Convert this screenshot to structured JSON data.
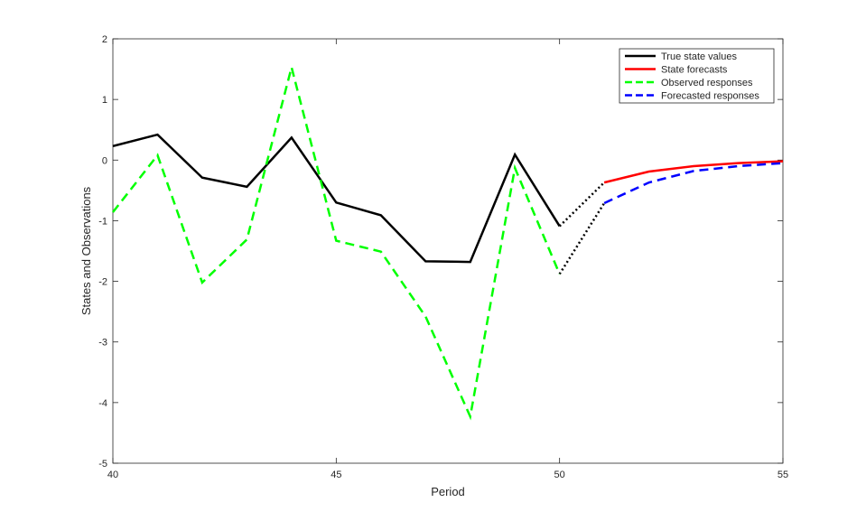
{
  "chart_data": {
    "type": "line",
    "title": "",
    "xlabel": "Period",
    "ylabel": "States and Observations",
    "xlim": [
      40,
      55
    ],
    "ylim": [
      -5,
      2
    ],
    "xticks": [
      "40",
      "45",
      "50",
      "55"
    ],
    "yticks": [
      "2",
      "1",
      "0",
      "-1",
      "-2",
      "-3",
      "-4",
      "-5"
    ],
    "grid": false,
    "legend_position": "top-right",
    "series": [
      {
        "name": "True state values",
        "color": "#000000",
        "style": "solid",
        "x": [
          40,
          41,
          42,
          43,
          44,
          45,
          46,
          47,
          48,
          49,
          50
        ],
        "y": [
          0.23,
          0.42,
          -0.29,
          -0.44,
          0.37,
          -0.7,
          -0.91,
          -1.67,
          -1.68,
          0.09,
          -1.09
        ]
      },
      {
        "name": "State forecasts",
        "color": "#ff0000",
        "style": "solid",
        "x": [
          51,
          52,
          53,
          54,
          55
        ],
        "y": [
          -0.37,
          -0.19,
          -0.1,
          -0.05,
          -0.02
        ]
      },
      {
        "name": "Observed responses",
        "color": "#00ff00",
        "style": "dashed",
        "x": [
          40,
          41,
          42,
          43,
          44,
          45,
          46,
          47,
          48,
          49,
          50
        ],
        "y": [
          -0.86,
          0.08,
          -2.02,
          -1.31,
          1.53,
          -1.33,
          -1.51,
          -2.58,
          -4.23,
          -0.13,
          -1.88
        ]
      },
      {
        "name": "Forecasted responses",
        "color": "#0000ff",
        "style": "dashed",
        "x": [
          51,
          52,
          53,
          54,
          55
        ],
        "y": [
          -0.71,
          -0.37,
          -0.18,
          -0.1,
          -0.05
        ]
      }
    ],
    "connectors": [
      {
        "color": "#000000",
        "style": "dotted",
        "x": [
          50,
          51
        ],
        "y": [
          -1.09,
          -0.37
        ]
      },
      {
        "color": "#000000",
        "style": "dotted",
        "x": [
          50,
          51
        ],
        "y": [
          -1.88,
          -0.71
        ]
      }
    ]
  }
}
